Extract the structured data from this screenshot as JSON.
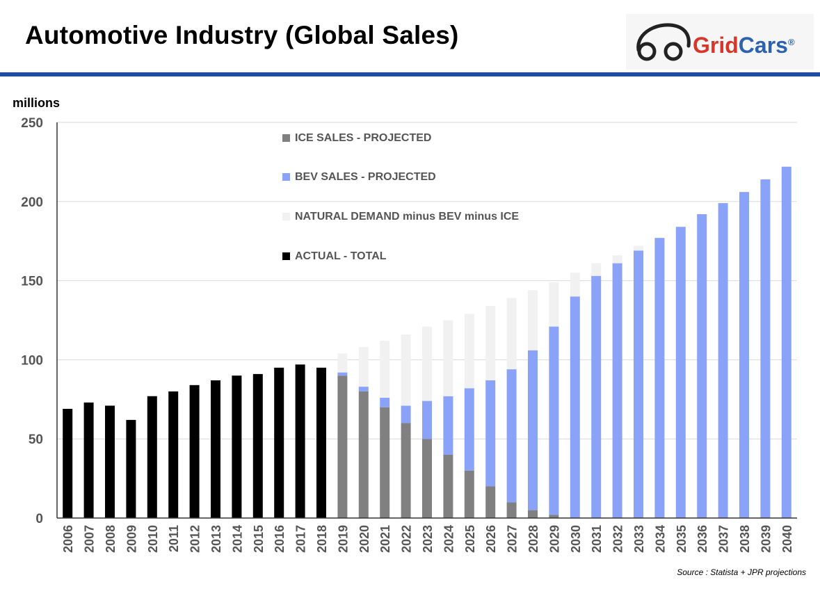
{
  "header": {
    "title": "Automotive Industry (Global Sales)",
    "logo_name": "GridCars",
    "logo_part_grid": "Grid",
    "logo_part_cars": "Cars",
    "logo_registered": "®"
  },
  "colors": {
    "actual": "#000000",
    "ice": "#808080",
    "bev": "#8aa3f8",
    "natural": "#f1f1f1",
    "rule": "#1f4ea3"
  },
  "chart_data": {
    "type": "bar",
    "stacked": true,
    "ylabel": "millions",
    "ylim": [
      0,
      250
    ],
    "yticks": [
      0,
      50,
      100,
      150,
      200,
      250
    ],
    "grid": true,
    "legend_position": "top-center",
    "categories": [
      "2006",
      "2007",
      "2008",
      "2009",
      "2010",
      "2011",
      "2012",
      "2013",
      "2014",
      "2015",
      "2016",
      "2017",
      "2018",
      "2019",
      "2020",
      "2021",
      "2022",
      "2023",
      "2024",
      "2025",
      "2026",
      "2027",
      "2028",
      "2029",
      "2030",
      "2031",
      "2032",
      "2033",
      "2034",
      "2035",
      "2036",
      "2037",
      "2038",
      "2039",
      "2040"
    ],
    "series": [
      {
        "name": "ACTUAL - TOTAL",
        "key": "actual",
        "values": [
          69,
          73,
          71,
          62,
          77,
          80,
          84,
          87,
          90,
          91,
          95,
          97,
          95,
          0,
          0,
          0,
          0,
          0,
          0,
          0,
          0,
          0,
          0,
          0,
          0,
          0,
          0,
          0,
          0,
          0,
          0,
          0,
          0,
          0,
          0
        ]
      },
      {
        "name": "ICE SALES - PROJECTED",
        "key": "ice",
        "values": [
          0,
          0,
          0,
          0,
          0,
          0,
          0,
          0,
          0,
          0,
          0,
          0,
          0,
          90,
          80,
          70,
          60,
          50,
          40,
          30,
          20,
          10,
          5,
          2,
          0,
          0,
          0,
          0,
          0,
          0,
          0,
          0,
          0,
          0,
          0
        ]
      },
      {
        "name": "BEV SALES - PROJECTED",
        "key": "bev",
        "values": [
          0,
          0,
          0,
          0,
          0,
          0,
          0,
          0,
          0,
          0,
          0,
          0,
          0,
          2,
          3,
          6,
          11,
          24,
          37,
          52,
          67,
          84,
          101,
          119,
          140,
          153,
          161,
          169,
          177,
          184,
          192,
          199,
          206,
          214,
          222
        ]
      },
      {
        "name": "NATURAL DEMAND minus BEV minus ICE",
        "key": "natural",
        "values": [
          0,
          0,
          0,
          0,
          0,
          0,
          0,
          0,
          0,
          0,
          0,
          0,
          0,
          12,
          25,
          36,
          45,
          47,
          48,
          47,
          47,
          45,
          38,
          28,
          15,
          8,
          5,
          3,
          0,
          0,
          0,
          0,
          0,
          0,
          0
        ]
      }
    ],
    "legend_order": [
      "ICE SALES - PROJECTED",
      "BEV SALES - PROJECTED",
      "NATURAL DEMAND minus BEV minus ICE",
      "ACTUAL - TOTAL"
    ],
    "source": "Source : Statista + JPR projections"
  }
}
